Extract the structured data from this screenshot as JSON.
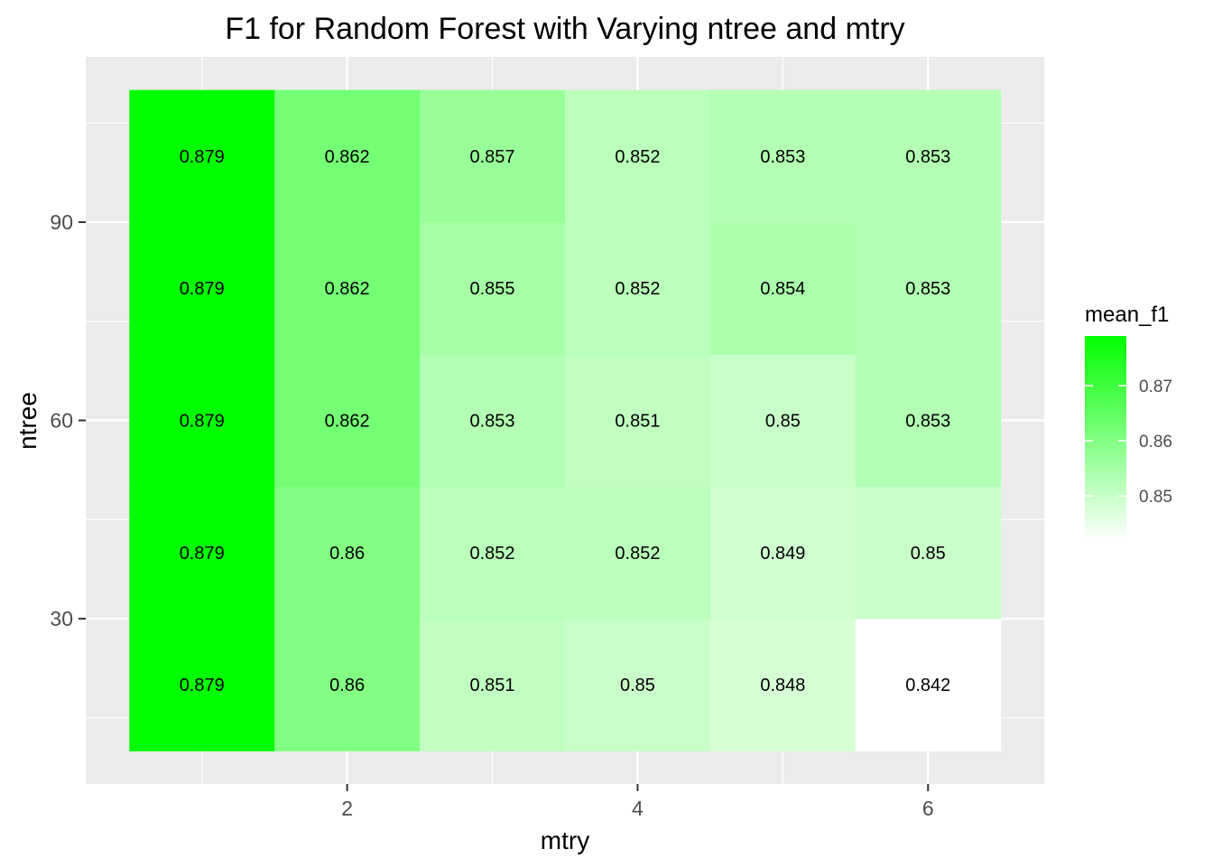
{
  "chart_data": {
    "type": "heatmap",
    "title": "F1 for Random Forest with Varying ntree and mtry",
    "xlabel": "mtry",
    "ylabel": "ntree",
    "x": [
      1,
      2,
      3,
      4,
      5,
      6
    ],
    "y": [
      20,
      40,
      60,
      80,
      100
    ],
    "values": [
      [
        0.879,
        0.86,
        0.851,
        0.85,
        0.848,
        0.842
      ],
      [
        0.879,
        0.86,
        0.852,
        0.852,
        0.849,
        0.85
      ],
      [
        0.879,
        0.862,
        0.853,
        0.851,
        0.85,
        0.853
      ],
      [
        0.879,
        0.862,
        0.855,
        0.852,
        0.854,
        0.853
      ],
      [
        0.879,
        0.862,
        0.857,
        0.852,
        0.853,
        0.853
      ]
    ],
    "cell_labels": [
      [
        "0.879",
        "0.86",
        "0.851",
        "0.85",
        "0.848",
        "0.842"
      ],
      [
        "0.879",
        "0.86",
        "0.852",
        "0.852",
        "0.849",
        "0.85"
      ],
      [
        "0.879",
        "0.862",
        "0.853",
        "0.851",
        "0.85",
        "0.853"
      ],
      [
        "0.879",
        "0.862",
        "0.855",
        "0.852",
        "0.854",
        "0.853"
      ],
      [
        "0.879",
        "0.862",
        "0.857",
        "0.852",
        "0.853",
        "0.853"
      ]
    ],
    "xlim": [
      0.5,
      6.5
    ],
    "ylim": [
      10,
      110
    ],
    "x_ticks": [
      2,
      4,
      6
    ],
    "x_tick_labels": [
      "2",
      "4",
      "6"
    ],
    "y_ticks": [
      30,
      60,
      90
    ],
    "y_tick_labels": [
      "30",
      "60",
      "90"
    ],
    "grid": true,
    "legend": {
      "title": "mean_f1",
      "position": "right",
      "ticks": [
        0.85,
        0.86,
        0.87
      ],
      "tick_labels": [
        "0.85",
        "0.86",
        "0.87"
      ],
      "min": 0.842,
      "max": 0.879
    },
    "colors": {
      "low": "#ffffff",
      "high": "#00ff00",
      "panel_background": "#ebebeb",
      "grid": "#ffffff"
    }
  }
}
